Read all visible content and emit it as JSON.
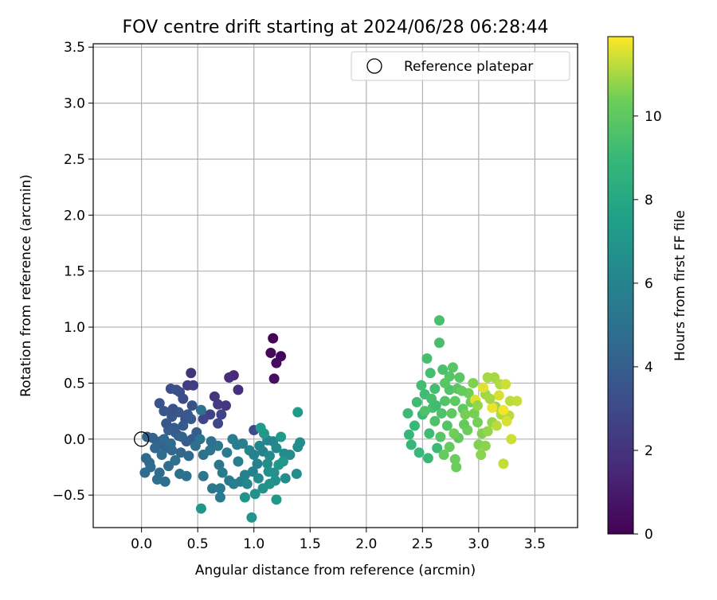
{
  "chart_data": {
    "type": "scatter",
    "title": "FOV centre drift starting at 2024/06/28 06:28:44",
    "xlabel": "Angular distance from reference (arcmin)",
    "ylabel": "Rotation from reference (arcmin)",
    "xlim": [
      -0.43,
      3.88
    ],
    "ylim": [
      -0.79,
      3.53
    ],
    "x_ticks": [
      0.0,
      0.5,
      1.0,
      1.5,
      2.0,
      2.5,
      3.0,
      3.5
    ],
    "x_tick_labels": [
      "0.0",
      "0.5",
      "1.0",
      "1.5",
      "2.0",
      "2.5",
      "3.0",
      "3.5"
    ],
    "y_ticks": [
      -0.5,
      0.0,
      0.5,
      1.0,
      1.5,
      2.0,
      2.5,
      3.0,
      3.5
    ],
    "y_tick_labels": [
      "−0.5",
      "0.0",
      "0.5",
      "1.0",
      "1.5",
      "2.0",
      "2.5",
      "3.0",
      "3.5"
    ],
    "grid": true,
    "legend": {
      "placement": "top-right",
      "entries": [
        "Reference platepar"
      ]
    },
    "reference_point": {
      "x": 0.0,
      "y": 0.0,
      "label": "Reference platepar"
    },
    "colorbar": {
      "label": "Hours from first FF file",
      "range": [
        0,
        11.9
      ],
      "ticks": [
        0,
        2,
        4,
        6,
        8,
        10
      ],
      "tick_labels": [
        "0",
        "2",
        "4",
        "6",
        "8",
        "10"
      ],
      "colormap": "viridis"
    },
    "points": [
      [
        1.17,
        0.9,
        0.1
      ],
      [
        1.24,
        0.74,
        0.2
      ],
      [
        1.15,
        0.77,
        0.3
      ],
      [
        1.2,
        0.68,
        0.4
      ],
      [
        1.18,
        0.54,
        0.5
      ],
      [
        0.82,
        0.57,
        1.6
      ],
      [
        0.78,
        0.55,
        1.7
      ],
      [
        0.86,
        0.44,
        1.8
      ],
      [
        0.44,
        0.59,
        2.0
      ],
      [
        0.65,
        0.38,
        2.1
      ],
      [
        0.75,
        0.3,
        2.2
      ],
      [
        0.68,
        0.31,
        2.3
      ],
      [
        0.41,
        0.48,
        2.4
      ],
      [
        0.46,
        0.48,
        2.5
      ],
      [
        0.61,
        0.22,
        2.6
      ],
      [
        0.71,
        0.22,
        2.7
      ],
      [
        0.55,
        0.18,
        2.8
      ],
      [
        0.68,
        0.14,
        2.9
      ],
      [
        1.0,
        0.08,
        3.0
      ],
      [
        0.37,
        0.36,
        3.0
      ],
      [
        0.34,
        0.42,
        3.1
      ],
      [
        0.26,
        0.45,
        3.2
      ],
      [
        0.31,
        0.44,
        3.3
      ],
      [
        0.45,
        0.3,
        3.3
      ],
      [
        0.39,
        0.18,
        3.4
      ],
      [
        0.16,
        0.32,
        3.5
      ],
      [
        0.2,
        0.25,
        3.6
      ],
      [
        0.27,
        0.2,
        3.6
      ],
      [
        0.33,
        0.24,
        3.7
      ],
      [
        0.41,
        0.22,
        3.7
      ],
      [
        0.37,
        0.12,
        3.8
      ],
      [
        0.29,
        0.1,
        3.8
      ],
      [
        0.49,
        0.06,
        3.9
      ],
      [
        0.45,
        0.0,
        3.9
      ],
      [
        0.4,
        -0.02,
        4.0
      ],
      [
        0.33,
        0.03,
        4.0
      ],
      [
        0.24,
        0.08,
        4.1
      ],
      [
        0.17,
        -0.02,
        4.1
      ],
      [
        0.1,
        0.01,
        4.2
      ],
      [
        0.05,
        0.02,
        4.2
      ],
      [
        0.14,
        -0.05,
        4.3
      ],
      [
        0.21,
        -0.08,
        4.3
      ],
      [
        0.27,
        -0.1,
        4.4
      ],
      [
        0.35,
        -0.12,
        4.4
      ],
      [
        0.42,
        -0.15,
        4.5
      ],
      [
        0.04,
        -0.17,
        4.5
      ],
      [
        0.07,
        -0.21,
        4.6
      ],
      [
        0.08,
        -0.25,
        4.6
      ],
      [
        0.03,
        -0.3,
        4.7
      ],
      [
        0.16,
        -0.3,
        4.7
      ],
      [
        0.14,
        -0.36,
        4.8
      ],
      [
        0.21,
        -0.38,
        4.8
      ],
      [
        0.24,
        -0.24,
        4.9
      ],
      [
        0.3,
        -0.19,
        4.9
      ],
      [
        0.34,
        -0.31,
        5.0
      ],
      [
        0.4,
        -0.33,
        5.0
      ],
      [
        0.53,
        0.26,
        5.0
      ],
      [
        0.52,
        0.0,
        5.1
      ],
      [
        0.55,
        -0.14,
        5.1
      ],
      [
        0.55,
        -0.33,
        5.2
      ],
      [
        0.61,
        -0.1,
        5.2
      ],
      [
        0.68,
        -0.06,
        5.3
      ],
      [
        0.69,
        -0.23,
        5.3
      ],
      [
        0.63,
        -0.44,
        5.4
      ],
      [
        0.7,
        -0.44,
        5.4
      ],
      [
        0.7,
        -0.52,
        5.5
      ],
      [
        0.78,
        -0.37,
        5.5
      ],
      [
        0.76,
        -0.12,
        5.6
      ],
      [
        0.81,
        0.0,
        5.6
      ],
      [
        0.85,
        -0.05,
        5.7
      ],
      [
        0.9,
        -0.04,
        5.7
      ],
      [
        0.82,
        -0.4,
        5.8
      ],
      [
        0.88,
        -0.38,
        5.8
      ],
      [
        0.92,
        -0.32,
        5.9
      ],
      [
        0.99,
        -0.29,
        5.9
      ],
      [
        1.03,
        -0.22,
        6.0
      ],
      [
        1.08,
        -0.11,
        6.0
      ],
      [
        1.05,
        -0.06,
        6.1
      ],
      [
        0.96,
        -0.1,
        6.1
      ],
      [
        1.12,
        -0.01,
        6.2
      ],
      [
        1.17,
        -0.02,
        6.2
      ],
      [
        1.14,
        -0.15,
        6.3
      ],
      [
        1.2,
        -0.08,
        6.3
      ],
      [
        1.27,
        -0.13,
        6.4
      ],
      [
        1.32,
        -0.14,
        6.4
      ],
      [
        1.39,
        -0.07,
        6.5
      ],
      [
        1.41,
        -0.03,
        6.5
      ],
      [
        1.38,
        -0.31,
        6.6
      ],
      [
        1.28,
        -0.35,
        6.6
      ],
      [
        1.19,
        -0.37,
        6.7
      ],
      [
        1.13,
        -0.29,
        6.7
      ],
      [
        1.08,
        -0.44,
        6.8
      ],
      [
        1.01,
        -0.49,
        6.8
      ],
      [
        0.92,
        -0.52,
        6.9
      ],
      [
        0.98,
        -0.7,
        6.9
      ],
      [
        0.53,
        -0.62,
        7.0
      ],
      [
        1.22,
        -0.23,
        7.0
      ],
      [
        1.2,
        -0.54,
        7.1
      ],
      [
        1.09,
        0.05,
        7.1
      ],
      [
        1.06,
        0.1,
        7.2
      ],
      [
        1.24,
        0.02,
        7.2
      ],
      [
        1.39,
        0.24,
        7.3
      ],
      [
        2.38,
        0.04,
        8.9
      ],
      [
        2.4,
        -0.05,
        8.9
      ],
      [
        2.47,
        -0.12,
        9.0
      ],
      [
        2.55,
        -0.17,
        9.0
      ],
      [
        2.63,
        -0.08,
        9.1
      ],
      [
        2.37,
        0.23,
        9.1
      ],
      [
        2.45,
        0.33,
        9.2
      ],
      [
        2.52,
        0.4,
        9.2
      ],
      [
        2.49,
        0.48,
        9.3
      ],
      [
        2.57,
        0.59,
        9.3
      ],
      [
        2.54,
        0.72,
        9.4
      ],
      [
        2.65,
        0.86,
        9.4
      ],
      [
        2.65,
        1.06,
        9.5
      ],
      [
        2.59,
        0.28,
        9.5
      ],
      [
        2.61,
        0.16,
        9.6
      ],
      [
        2.67,
        0.23,
        9.6
      ],
      [
        2.7,
        0.34,
        9.7
      ],
      [
        2.74,
        0.44,
        9.7
      ],
      [
        2.74,
        0.56,
        9.8
      ],
      [
        2.77,
        0.64,
        9.8
      ],
      [
        2.83,
        0.55,
        9.9
      ],
      [
        2.81,
        0.45,
        9.9
      ],
      [
        2.79,
        0.34,
        10.0
      ],
      [
        2.86,
        0.27,
        10.0
      ],
      [
        2.87,
        0.13,
        10.1
      ],
      [
        2.82,
        0.01,
        10.1
      ],
      [
        2.74,
        -0.07,
        10.2
      ],
      [
        2.69,
        -0.14,
        10.2
      ],
      [
        2.79,
        -0.18,
        10.3
      ],
      [
        2.8,
        -0.25,
        10.3
      ],
      [
        2.91,
        0.41,
        10.4
      ],
      [
        2.93,
        0.33,
        10.4
      ],
      [
        2.96,
        0.23,
        10.5
      ],
      [
        2.99,
        0.15,
        10.5
      ],
      [
        3.03,
        0.05,
        10.6
      ],
      [
        3.0,
        -0.05,
        10.6
      ],
      [
        3.02,
        -0.14,
        10.7
      ],
      [
        3.06,
        -0.06,
        10.7
      ],
      [
        3.08,
        0.07,
        10.8
      ],
      [
        3.12,
        0.15,
        10.8
      ],
      [
        3.15,
        0.29,
        10.9
      ],
      [
        3.06,
        0.4,
        10.9
      ],
      [
        3.08,
        0.55,
        11.0
      ],
      [
        3.14,
        0.55,
        11.0
      ],
      [
        3.19,
        0.49,
        11.1
      ],
      [
        3.2,
        0.22,
        11.1
      ],
      [
        3.27,
        0.21,
        11.2
      ],
      [
        3.28,
        0.34,
        11.2
      ],
      [
        3.34,
        0.34,
        11.3
      ],
      [
        3.22,
        -0.22,
        11.3
      ],
      [
        3.29,
        0.0,
        11.4
      ],
      [
        3.24,
        0.49,
        11.4
      ],
      [
        3.18,
        0.39,
        11.5
      ],
      [
        3.25,
        0.16,
        11.5
      ],
      [
        3.04,
        0.46,
        11.6
      ],
      [
        2.97,
        0.35,
        11.6
      ],
      [
        3.12,
        0.28,
        11.7
      ],
      [
        3.22,
        0.26,
        11.8
      ],
      [
        2.43,
        0.12,
        9.0
      ],
      [
        2.5,
        0.22,
        9.1
      ],
      [
        2.56,
        0.05,
        9.2
      ],
      [
        2.61,
        0.45,
        9.3
      ],
      [
        2.68,
        0.62,
        9.5
      ],
      [
        2.72,
        0.12,
        9.7
      ],
      [
        2.58,
        0.36,
        9.4
      ],
      [
        2.66,
        0.02,
        9.8
      ],
      [
        2.76,
        0.23,
        10.0
      ],
      [
        2.85,
        0.43,
        10.2
      ],
      [
        2.9,
        0.08,
        10.3
      ],
      [
        2.95,
        0.5,
        10.6
      ],
      [
        2.7,
        0.5,
        9.9
      ],
      [
        2.52,
        0.25,
        9.6
      ],
      [
        2.62,
        0.3,
        9.2
      ],
      [
        2.78,
        0.05,
        10.4
      ],
      [
        2.88,
        0.22,
        10.5
      ],
      [
        2.99,
        0.3,
        10.8
      ],
      [
        3.1,
        0.36,
        11.0
      ],
      [
        3.16,
        0.12,
        11.2
      ],
      [
        0.2,
        0.0,
        4.5
      ],
      [
        0.26,
        -0.04,
        4.6
      ],
      [
        0.12,
        -0.08,
        4.4
      ],
      [
        0.3,
        0.06,
        3.9
      ],
      [
        0.36,
        0.02,
        4.2
      ],
      [
        0.22,
        0.14,
        3.7
      ],
      [
        0.28,
        0.27,
        3.4
      ],
      [
        0.44,
        0.18,
        3.8
      ],
      [
        0.18,
        -0.14,
        4.7
      ],
      [
        0.48,
        -0.06,
        4.9
      ],
      [
        0.62,
        -0.02,
        5.0
      ],
      [
        0.72,
        -0.3,
        5.6
      ],
      [
        0.86,
        -0.2,
        5.8
      ],
      [
        0.94,
        -0.4,
        6.2
      ],
      [
        1.04,
        -0.35,
        6.4
      ],
      [
        1.12,
        -0.22,
        6.6
      ],
      [
        1.18,
        -0.3,
        6.8
      ],
      [
        1.26,
        -0.2,
        7.0
      ],
      [
        1.0,
        -0.14,
        6.0
      ],
      [
        1.14,
        -0.4,
        6.9
      ]
    ]
  }
}
